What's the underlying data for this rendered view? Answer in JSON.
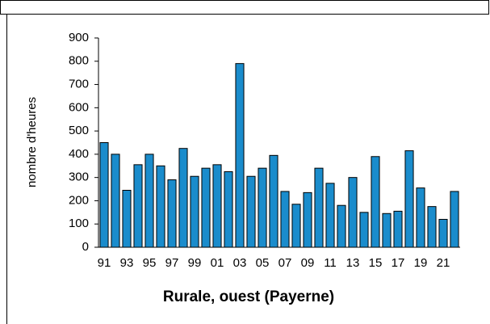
{
  "chart_data": {
    "type": "bar",
    "title": "Rurale, ouest (Payerne)",
    "y_label": "nombre d'heures",
    "categories": [
      "91",
      null,
      "93",
      null,
      "95",
      null,
      "97",
      null,
      "99",
      null,
      "01",
      null,
      "03",
      null,
      "05",
      null,
      "07",
      null,
      "09",
      null,
      "11",
      null,
      "13",
      null,
      "15",
      null,
      "17",
      null,
      "19",
      null,
      "21",
      null
    ],
    "values": [
      450,
      400,
      245,
      355,
      400,
      350,
      290,
      425,
      305,
      340,
      355,
      325,
      790,
      305,
      340,
      395,
      240,
      185,
      235,
      340,
      275,
      180,
      300,
      150,
      390,
      145,
      155,
      415,
      255,
      175,
      120,
      240
    ],
    "color": "#1a8ccc",
    "ylim": [
      0,
      900
    ],
    "yticks": [
      0,
      100,
      200,
      300,
      400,
      500,
      600,
      700,
      800,
      900
    ],
    "grid": false
  }
}
